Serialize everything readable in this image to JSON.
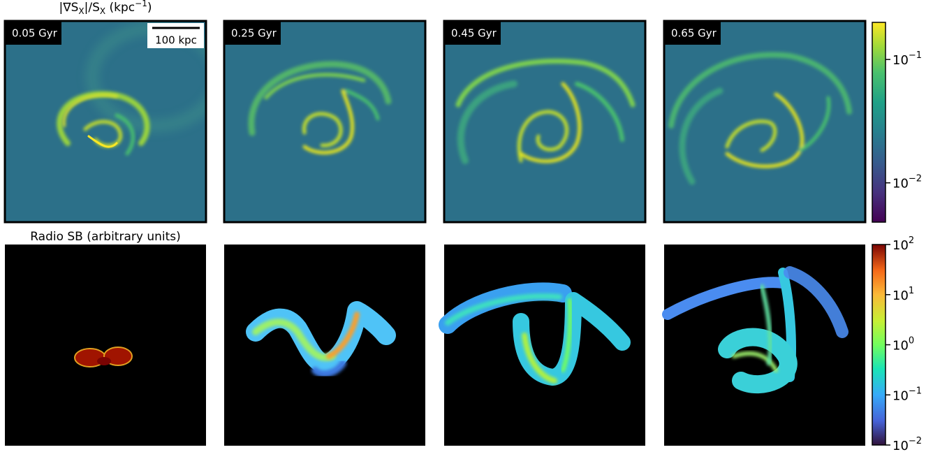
{
  "top_title_parts": [
    "|∇S",
    "X",
    "|/S",
    "X",
    " (kpc",
    "−1",
    ")"
  ],
  "bottom_title": "Radio SB (arbitrary units)",
  "time_labels": [
    "0.05 Gyr",
    "0.25 Gyr",
    "0.45 Gyr",
    "0.65 Gyr"
  ],
  "scale_bar": "100 kpc",
  "colorbars": [
    {
      "scale": "log",
      "cmap": "viridis",
      "lim": [
        0.0048,
        0.2
      ],
      "ticks": [
        {
          "value": 0.1,
          "base": "10",
          "exp": "−1"
        },
        {
          "value": 0.01,
          "base": "10",
          "exp": "−2"
        }
      ]
    },
    {
      "scale": "log",
      "cmap": "turbo",
      "lim": [
        0.01,
        100
      ],
      "ticks": [
        {
          "value": 100,
          "base": "10",
          "exp": "2"
        },
        {
          "value": 10,
          "base": "10",
          "exp": "1"
        },
        {
          "value": 1,
          "base": "10",
          "exp": "0"
        },
        {
          "value": 0.1,
          "base": "10",
          "exp": "−1"
        },
        {
          "value": 0.01,
          "base": "10",
          "exp": "−2"
        }
      ]
    }
  ]
}
